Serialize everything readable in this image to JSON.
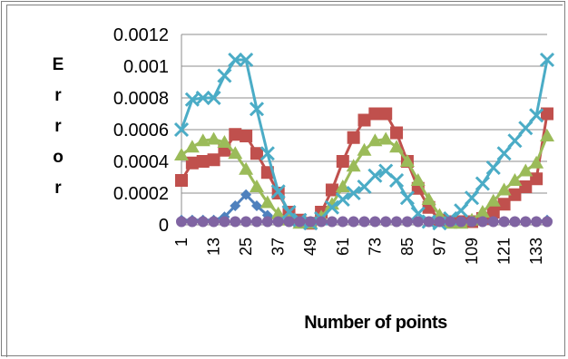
{
  "chart_data": {
    "type": "line",
    "title": "",
    "xlabel": "Number of points",
    "ylabel": "Error",
    "ylim": [
      0,
      0.0012
    ],
    "yticks": [
      "0",
      "0.0002",
      "0.0004",
      "0.0006",
      "0.0008",
      "0.001",
      "0.0012"
    ],
    "xticks": [
      "1",
      "13",
      "25",
      "37",
      "49",
      "61",
      "73",
      "85",
      "97",
      "109",
      "121",
      "133"
    ],
    "grid": true,
    "legend": "none",
    "x": [
      1,
      5,
      9,
      13,
      17,
      21,
      25,
      29,
      33,
      37,
      41,
      45,
      49,
      53,
      57,
      61,
      65,
      69,
      73,
      77,
      81,
      85,
      89,
      93,
      97,
      101,
      105,
      109,
      113,
      117,
      121,
      125,
      129,
      133,
      137
    ],
    "series": [
      {
        "color": "#4f81bd",
        "marker": "diamond",
        "values": [
          3e-05,
          3e-05,
          3e-05,
          3e-05,
          5e-05,
          0.00012,
          0.00019,
          0.00012,
          6e-05,
          3e-05,
          2e-05,
          2e-05,
          2e-05,
          2e-05,
          2e-05,
          2e-05,
          2e-05,
          2e-05,
          2e-05,
          2e-05,
          2e-05,
          2e-05,
          2e-05,
          2e-05,
          2e-05,
          2e-05,
          2e-05,
          2e-05,
          2e-05,
          2e-05,
          2e-05,
          2e-05,
          2e-05,
          2e-05,
          3e-05
        ]
      },
      {
        "color": "#c0504d",
        "marker": "square",
        "values": [
          0.00028,
          0.00039,
          0.0004,
          0.00041,
          0.00047,
          0.00057,
          0.00056,
          0.00045,
          0.00033,
          0.0002,
          8e-05,
          3e-05,
          1e-05,
          8e-05,
          0.00022,
          0.0004,
          0.00055,
          0.00066,
          0.0007,
          0.0007,
          0.00058,
          0.0004,
          0.00023,
          0.00011,
          3e-05,
          2e-05,
          2e-05,
          2e-05,
          4e-05,
          8e-05,
          0.00013,
          0.00019,
          0.00024,
          0.00029,
          0.0007
        ]
      },
      {
        "color": "#9bbb59",
        "marker": "triangle",
        "values": [
          0.00044,
          0.00049,
          0.00053,
          0.00054,
          0.00052,
          0.00045,
          0.00035,
          0.00024,
          0.00014,
          7e-05,
          3e-05,
          1e-05,
          1e-05,
          5e-05,
          0.00013,
          0.00024,
          0.00037,
          0.00047,
          0.00053,
          0.00054,
          0.00049,
          0.0004,
          0.00028,
          0.00016,
          6e-05,
          1e-05,
          1e-05,
          3e-05,
          8e-05,
          0.00015,
          0.00022,
          0.00028,
          0.00034,
          0.00039,
          0.00056
        ]
      },
      {
        "color": "#4bacc6",
        "marker": "x",
        "values": [
          0.0006,
          0.00079,
          0.0008,
          0.0008,
          0.00094,
          0.00104,
          0.00104,
          0.00073,
          0.00045,
          0.00021,
          8e-05,
          3e-05,
          1e-05,
          4e-05,
          0.00011,
          0.00016,
          0.0002,
          0.00024,
          0.00031,
          0.00034,
          0.00028,
          0.00017,
          7e-05,
          2e-05,
          1e-05,
          4e-05,
          9e-05,
          0.00017,
          0.00026,
          0.00036,
          0.00045,
          0.00053,
          0.00061,
          0.00069,
          0.00104
        ]
      },
      {
        "color": "#8064a2",
        "marker": "circle",
        "values": [
          2e-05,
          2e-05,
          2e-05,
          2e-05,
          2e-05,
          2e-05,
          2e-05,
          2e-05,
          2e-05,
          2e-05,
          2e-05,
          2e-05,
          2e-05,
          2e-05,
          2e-05,
          2e-05,
          2e-05,
          2e-05,
          2e-05,
          2e-05,
          2e-05,
          2e-05,
          2e-05,
          2e-05,
          2e-05,
          2e-05,
          2e-05,
          2e-05,
          2e-05,
          2e-05,
          2e-05,
          2e-05,
          2e-05,
          2e-05,
          2e-05
        ]
      }
    ]
  }
}
